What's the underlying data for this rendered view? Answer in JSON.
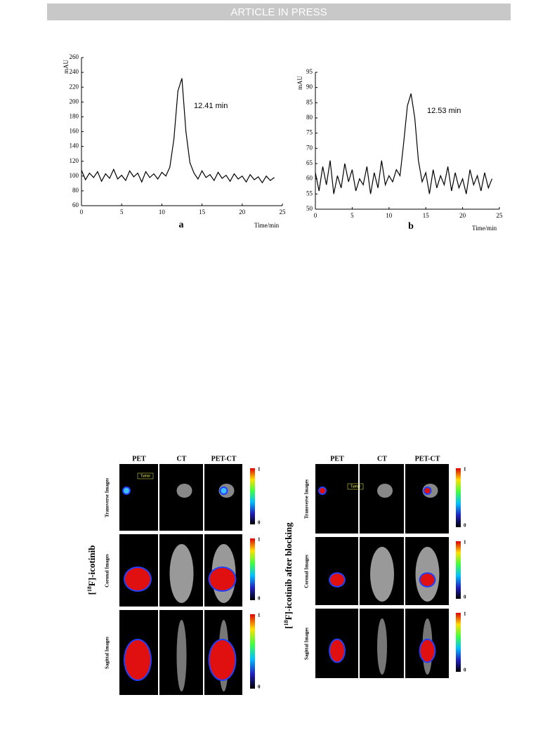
{
  "header": "ARTICLE IN PRESS",
  "chart_data": [
    {
      "type": "line",
      "ylabel": "mAU",
      "xlabel": "Time/min",
      "annotation": "12.41 min",
      "panel_label": "a",
      "x": [
        0,
        0.5,
        1,
        1.5,
        2,
        2.5,
        3,
        3.5,
        4,
        4.5,
        5,
        5.5,
        6,
        6.5,
        7,
        7.5,
        8,
        8.5,
        9,
        9.5,
        10,
        10.5,
        11,
        11.5,
        12,
        12.5,
        13,
        13.5,
        14,
        14.5,
        15,
        15.5,
        16,
        16.5,
        17,
        17.5,
        18,
        18.5,
        19,
        19.5,
        20,
        20.5,
        21,
        21.5,
        22,
        22.5,
        23,
        23.5,
        24
      ],
      "values": [
        108,
        95,
        104,
        98,
        106,
        93,
        103,
        97,
        109,
        96,
        101,
        94,
        107,
        99,
        104,
        92,
        106,
        98,
        103,
        96,
        105,
        100,
        112,
        150,
        215,
        232,
        160,
        118,
        104,
        96,
        107,
        98,
        102,
        94,
        105,
        97,
        101,
        93,
        103,
        96,
        100,
        92,
        102,
        95,
        99,
        91,
        100,
        94,
        98
      ],
      "color": "#000000",
      "xlim": [
        0,
        25
      ],
      "xticks": [
        0,
        5,
        10,
        15,
        20,
        25
      ],
      "ylim": [
        60,
        260
      ],
      "yticks": [
        60,
        80,
        100,
        120,
        140,
        160,
        180,
        200,
        220,
        240,
        260
      ]
    },
    {
      "type": "line",
      "ylabel": "mAU",
      "xlabel": "Time/min",
      "annotation": "12.53 min",
      "panel_label": "b",
      "x": [
        0,
        0.5,
        1,
        1.5,
        2,
        2.5,
        3,
        3.5,
        4,
        4.5,
        5,
        5.5,
        6,
        6.5,
        7,
        7.5,
        8,
        8.5,
        9,
        9.5,
        10,
        10.5,
        11,
        11.5,
        12,
        12.5,
        13,
        13.5,
        14,
        14.5,
        15,
        15.5,
        16,
        16.5,
        17,
        17.5,
        18,
        18.5,
        19,
        19.5,
        20,
        20.5,
        21,
        21.5,
        22,
        22.5,
        23,
        23.5,
        24
      ],
      "values": [
        62,
        56,
        64,
        58,
        66,
        55,
        61,
        57,
        65,
        59,
        63,
        56,
        60,
        58,
        64,
        55,
        62,
        57,
        66,
        58,
        61,
        59,
        63,
        61,
        72,
        84,
        88,
        80,
        66,
        59,
        62,
        55,
        63,
        57,
        61,
        58,
        64,
        56,
        62,
        57,
        60,
        55,
        63,
        58,
        61,
        56,
        62,
        57,
        60
      ],
      "color": "#000000",
      "xlim": [
        0,
        25
      ],
      "xticks": [
        0,
        5,
        10,
        15,
        20,
        25
      ],
      "ylim": [
        50,
        95
      ],
      "yticks": [
        50,
        55,
        60,
        65,
        70,
        75,
        80,
        85,
        90,
        95
      ]
    }
  ],
  "pet_figures": [
    {
      "side_label": {
        "pre": "[",
        "sup": "18",
        "post": "F]-icotinib"
      },
      "columns": [
        "PET",
        "CT",
        "PET-CT"
      ],
      "rows": [
        "Transverse Images",
        "Coronal Images",
        "Sagittal Images"
      ],
      "tumor_label": "Tumor",
      "colorbar": {
        "max": 1,
        "min": 0
      }
    },
    {
      "side_label": {
        "pre": "[",
        "sup": "18",
        "post": "F]-icotinib after blocking"
      },
      "columns": [
        "PET",
        "CT",
        "PET-CT"
      ],
      "rows": [
        "Transverse Images",
        "Coronal Images",
        "Sagittal Images"
      ],
      "tumor_label": "Tumor",
      "colorbar": {
        "max": 1,
        "min": 0
      }
    }
  ]
}
